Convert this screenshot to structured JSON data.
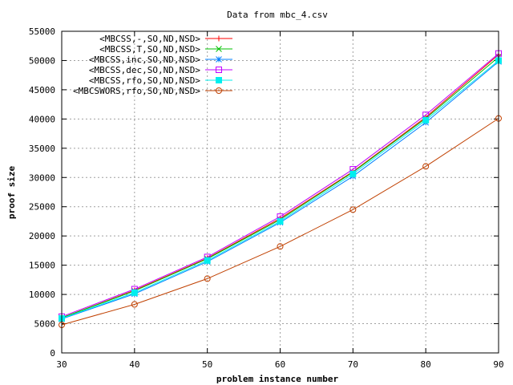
{
  "chart_data": {
    "type": "line",
    "title": "Data from mbc_4.csv",
    "xlabel": "problem instance number",
    "ylabel": "proof size",
    "xlim": [
      30,
      90
    ],
    "ylim": [
      0,
      55000
    ],
    "x_ticks": [
      30,
      40,
      50,
      60,
      70,
      80,
      90
    ],
    "y_ticks": [
      0,
      5000,
      10000,
      15000,
      20000,
      25000,
      30000,
      35000,
      40000,
      45000,
      50000,
      55000
    ],
    "grid": true,
    "legend_position": "top-left",
    "x": [
      30,
      40,
      50,
      60,
      70,
      80,
      90
    ],
    "series": [
      {
        "name": "<MBCSS,-,SO,ND,NSD>",
        "color": "#ff0000",
        "marker": "plus",
        "values": [
          6000,
          10700,
          16200,
          23000,
          31000,
          40300,
          51000
        ]
      },
      {
        "name": "<MBCSS,T,SO,ND,NSD>",
        "color": "#00c000",
        "marker": "cross",
        "values": [
          6000,
          10600,
          16100,
          22800,
          30900,
          40100,
          50600
        ]
      },
      {
        "name": "<MBCSS,inc,SO,ND,NSD>",
        "color": "#0080ff",
        "marker": "asterisk",
        "values": [
          5800,
          10100,
          15600,
          22300,
          30200,
          39400,
          49800
        ]
      },
      {
        "name": "<MBCSS,dec,SO,ND,NSD>",
        "color": "#c000ff",
        "marker": "square",
        "values": [
          6200,
          10900,
          16400,
          23300,
          31400,
          40700,
          51200
        ]
      },
      {
        "name": "<MBCSS,rfo,SO,ND,NSD>",
        "color": "#00eeee",
        "marker": "filled-square",
        "values": [
          5900,
          10300,
          15800,
          22500,
          30600,
          39800,
          50000
        ]
      },
      {
        "name": "<MBCSWORS,rfo,SO,ND,NSD>",
        "color": "#c04000",
        "marker": "circle",
        "values": [
          4800,
          8300,
          12700,
          18200,
          24500,
          31900,
          40100
        ]
      }
    ]
  }
}
